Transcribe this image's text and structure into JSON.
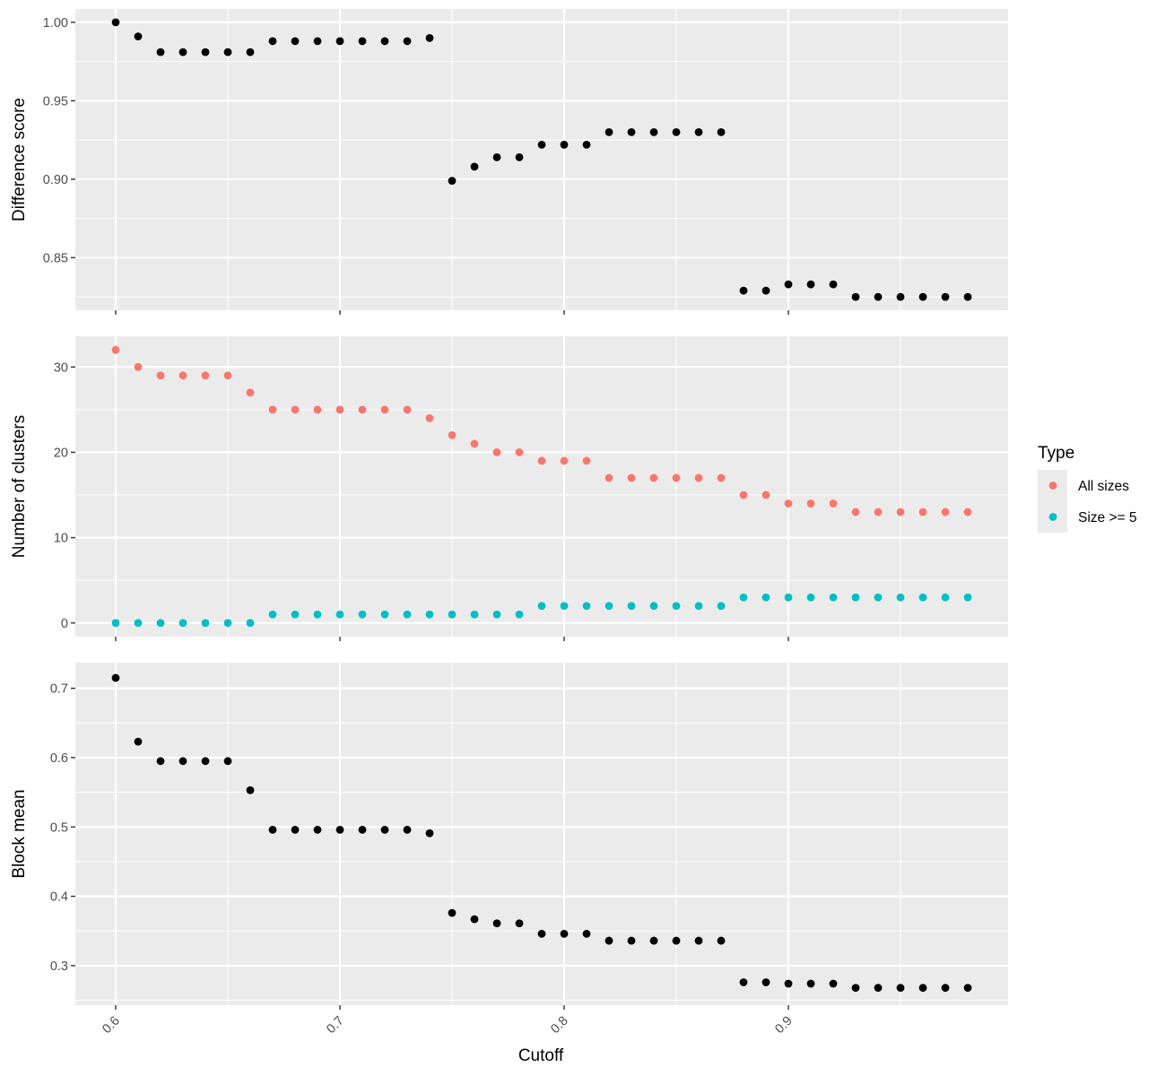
{
  "chart_data": {
    "type": "scatter",
    "layout": "three vertically stacked panels sharing the x axis",
    "x": [
      0.6,
      0.61,
      0.62,
      0.63,
      0.64,
      0.65,
      0.66,
      0.67,
      0.68,
      0.69,
      0.7,
      0.71,
      0.72,
      0.73,
      0.74,
      0.75,
      0.76,
      0.77,
      0.78,
      0.79,
      0.8,
      0.81,
      0.82,
      0.83,
      0.84,
      0.85,
      0.86,
      0.87,
      0.88,
      0.89,
      0.9,
      0.91,
      0.92,
      0.93,
      0.94,
      0.95,
      0.96,
      0.97,
      0.98
    ],
    "xlabel": "Cutoff",
    "xlim": [
      0.582,
      0.998
    ],
    "xticks": [
      0.6,
      0.7,
      0.8,
      0.9
    ],
    "xtick_labels": [
      "0.6",
      "0.7",
      "0.8",
      "0.9"
    ],
    "xtick_rotation_deg": -45,
    "grid": true,
    "panels": [
      {
        "ylabel": "Difference score",
        "ylim": [
          0.8165,
          1.0085
        ],
        "yticks": [
          0.85,
          0.9,
          0.95,
          1.0
        ],
        "ytick_labels": [
          "0.85",
          "0.90",
          "0.95",
          "1.00"
        ],
        "series": [
          {
            "name": "",
            "color": "#000000",
            "values": [
              1.0,
              0.991,
              0.981,
              0.981,
              0.981,
              0.981,
              0.981,
              0.988,
              0.988,
              0.988,
              0.988,
              0.988,
              0.988,
              0.988,
              0.99,
              0.899,
              0.908,
              0.914,
              0.914,
              0.922,
              0.922,
              0.922,
              0.93,
              0.93,
              0.93,
              0.93,
              0.93,
              0.93,
              0.829,
              0.829,
              0.833,
              0.833,
              0.833,
              0.825,
              0.825,
              0.825,
              0.825,
              0.825,
              0.825
            ]
          }
        ]
      },
      {
        "ylabel": "Number of clusters",
        "ylim": [
          -1.6,
          33.6
        ],
        "yticks": [
          0,
          10,
          20,
          30
        ],
        "ytick_labels": [
          "0",
          "10",
          "20",
          "30"
        ],
        "series": [
          {
            "name": "All sizes",
            "color": "#f8766d",
            "values": [
              32,
              30,
              29,
              29,
              29,
              29,
              27,
              25,
              25,
              25,
              25,
              25,
              25,
              25,
              24,
              22,
              21,
              20,
              20,
              19,
              19,
              19,
              17,
              17,
              17,
              17,
              17,
              17,
              15,
              15,
              14,
              14,
              14,
              13,
              13,
              13,
              13,
              13,
              13
            ]
          },
          {
            "name": "Size >= 5",
            "color": "#00bfc4",
            "values": [
              0,
              0,
              0,
              0,
              0,
              0,
              0,
              1,
              1,
              1,
              1,
              1,
              1,
              1,
              1,
              1,
              1,
              1,
              1,
              2,
              2,
              2,
              2,
              2,
              2,
              2,
              2,
              2,
              3,
              3,
              3,
              3,
              3,
              3,
              3,
              3,
              3,
              3,
              3
            ]
          }
        ]
      },
      {
        "ylabel": "Block mean",
        "ylim": [
          0.243,
          0.737
        ],
        "yticks": [
          0.3,
          0.4,
          0.5,
          0.6,
          0.7
        ],
        "ytick_labels": [
          "0.3",
          "0.4",
          "0.5",
          "0.6",
          "0.7"
        ],
        "series": [
          {
            "name": "",
            "color": "#000000",
            "values": [
              0.715,
              0.623,
              0.595,
              0.595,
              0.595,
              0.595,
              0.553,
              0.496,
              0.496,
              0.496,
              0.496,
              0.496,
              0.496,
              0.496,
              0.491,
              0.376,
              0.367,
              0.361,
              0.361,
              0.346,
              0.346,
              0.346,
              0.336,
              0.336,
              0.336,
              0.336,
              0.336,
              0.336,
              0.276,
              0.276,
              0.274,
              0.274,
              0.274,
              0.268,
              0.268,
              0.268,
              0.268,
              0.268,
              0.268
            ]
          }
        ]
      }
    ],
    "legend": {
      "title": "Type",
      "placement": "right",
      "entries": [
        {
          "label": "All sizes",
          "color": "#f8766d"
        },
        {
          "label": "Size >= 5",
          "color": "#00bfc4"
        }
      ]
    }
  }
}
